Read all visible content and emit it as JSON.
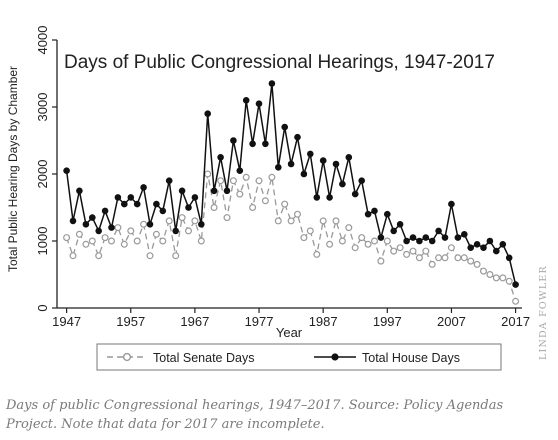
{
  "chart_data": {
    "type": "line",
    "title": "Days of Public Congressional Hearings, 1947-2017",
    "xlabel": "Year",
    "ylabel": "Total Public Hearing Days by Chamber",
    "xlim": [
      1945.5,
      2018
    ],
    "ylim": [
      0,
      4000
    ],
    "xticks": [
      1947,
      1957,
      1967,
      1977,
      1987,
      1997,
      2007,
      2017
    ],
    "yticks": [
      0,
      1000,
      2000,
      3000,
      4000
    ],
    "grid": false,
    "legend_position": "bottom",
    "x": [
      1947,
      1948,
      1949,
      1950,
      1951,
      1952,
      1953,
      1954,
      1955,
      1956,
      1957,
      1958,
      1959,
      1960,
      1961,
      1962,
      1963,
      1964,
      1965,
      1966,
      1967,
      1968,
      1969,
      1970,
      1971,
      1972,
      1973,
      1974,
      1975,
      1976,
      1977,
      1978,
      1979,
      1980,
      1981,
      1982,
      1983,
      1984,
      1985,
      1986,
      1987,
      1988,
      1989,
      1990,
      1991,
      1992,
      1993,
      1994,
      1995,
      1996,
      1997,
      1998,
      1999,
      2000,
      2001,
      2002,
      2003,
      2004,
      2005,
      2006,
      2007,
      2008,
      2009,
      2010,
      2011,
      2012,
      2013,
      2014,
      2015,
      2016,
      2017
    ],
    "series": [
      {
        "name": "Total Senate Days",
        "color": "#999999",
        "marker": "open-circle",
        "line_style": "dashed",
        "values": [
          1050,
          780,
          1100,
          950,
          1000,
          780,
          1050,
          1000,
          1200,
          950,
          1150,
          1000,
          1250,
          780,
          1100,
          1000,
          1300,
          780,
          1350,
          1150,
          1300,
          1000,
          2000,
          1500,
          1900,
          1350,
          1900,
          1700,
          1950,
          1500,
          1900,
          1600,
          1950,
          1300,
          1550,
          1300,
          1400,
          1050,
          1150,
          800,
          1300,
          950,
          1300,
          1000,
          1200,
          900,
          1050,
          950,
          1000,
          700,
          1000,
          850,
          900,
          800,
          850,
          750,
          850,
          650,
          750,
          750,
          900,
          750,
          750,
          700,
          650,
          550,
          500,
          450,
          450,
          400,
          100
        ]
      },
      {
        "name": "Total House Days",
        "color": "#111111",
        "marker": "filled-circle",
        "line_style": "solid",
        "values": [
          2050,
          1300,
          1750,
          1250,
          1350,
          1150,
          1450,
          1200,
          1650,
          1550,
          1650,
          1550,
          1800,
          1250,
          1550,
          1450,
          1900,
          1150,
          1750,
          1500,
          1650,
          1250,
          2900,
          1750,
          2250,
          1750,
          2500,
          2050,
          3100,
          2450,
          3050,
          2450,
          3350,
          2100,
          2700,
          2150,
          2550,
          2000,
          2300,
          1650,
          2200,
          1650,
          2150,
          1850,
          2250,
          1700,
          1900,
          1400,
          1450,
          1050,
          1400,
          1150,
          1250,
          1000,
          1050,
          1000,
          1050,
          1000,
          1150,
          1050,
          1550,
          1050,
          1100,
          900,
          950,
          900,
          1000,
          850,
          950,
          750,
          350
        ]
      }
    ]
  },
  "caption": "Days of public Congressional hearings, 1947–2017. Source: Policy Agendas Project. Note that data for 2017 are incomplete.",
  "credit": "LINDA FOWLER"
}
